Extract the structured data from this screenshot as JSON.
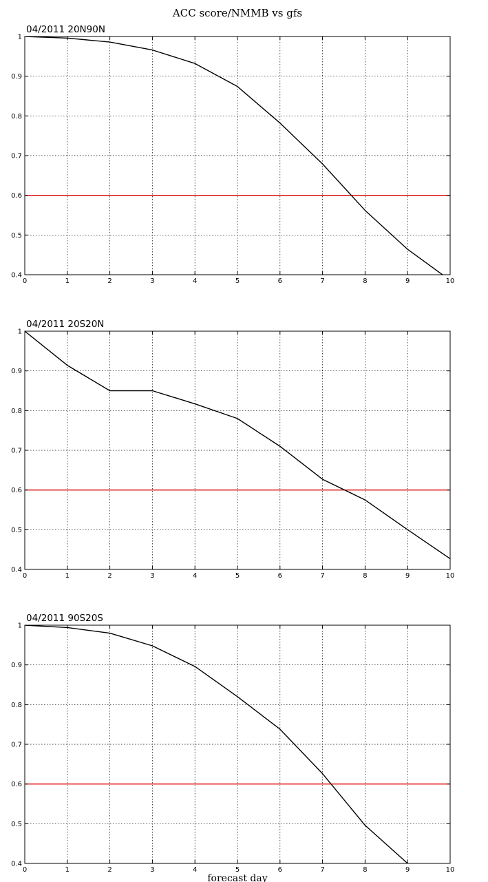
{
  "figure": {
    "title": "ACC score/NMMB vs gfs",
    "xlabel": "forecast day"
  },
  "chart_data": [
    {
      "type": "line",
      "title": "04/2011 20N90N",
      "x": [
        0,
        1,
        2,
        3,
        4,
        5,
        6,
        7,
        8,
        9,
        10
      ],
      "xlim": [
        0,
        10
      ],
      "ylim": [
        0.4,
        1.0
      ],
      "xticks": [
        0,
        1,
        2,
        3,
        4,
        5,
        6,
        7,
        8,
        9,
        10
      ],
      "yticks": [
        0.4,
        0.5,
        0.6,
        0.7,
        0.8,
        0.9,
        1.0
      ],
      "ytick_labels": [
        "0.4",
        "0.5",
        "0.6",
        "0.7",
        "0.8",
        "0.9",
        "1"
      ],
      "grid": true,
      "series": [
        {
          "values": [
            1.0,
            0.996,
            0.986,
            0.966,
            0.932,
            0.874,
            0.782,
            0.679,
            0.562,
            0.464,
            0.386
          ],
          "color": "#000000"
        }
      ],
      "reference_line": {
        "y": 0.6,
        "color": "#e00000"
      }
    },
    {
      "type": "line",
      "title": "04/2011 20S20N",
      "x": [
        0,
        1,
        2,
        3,
        4,
        5,
        6,
        7,
        8,
        9,
        10
      ],
      "xlim": [
        0,
        10
      ],
      "ylim": [
        0.4,
        1.0
      ],
      "xticks": [
        0,
        1,
        2,
        3,
        4,
        5,
        6,
        7,
        8,
        9,
        10
      ],
      "yticks": [
        0.4,
        0.5,
        0.6,
        0.7,
        0.8,
        0.9,
        1.0
      ],
      "ytick_labels": [
        "0.4",
        "0.5",
        "0.6",
        "0.7",
        "0.8",
        "0.9",
        "1"
      ],
      "grid": true,
      "series": [
        {
          "values": [
            1.0,
            0.914,
            0.85,
            0.85,
            0.817,
            0.78,
            0.71,
            0.627,
            0.575,
            0.5,
            0.427
          ],
          "color": "#000000"
        }
      ],
      "reference_line": {
        "y": 0.6,
        "color": "#e00000"
      }
    },
    {
      "type": "line",
      "title": "04/2011 90S20S",
      "x": [
        0,
        1,
        2,
        3,
        4,
        5,
        6,
        7,
        8,
        9,
        10
      ],
      "xlim": [
        0,
        10
      ],
      "ylim": [
        0.4,
        1.0
      ],
      "xticks": [
        0,
        1,
        2,
        3,
        4,
        5,
        6,
        7,
        8,
        9,
        10
      ],
      "yticks": [
        0.4,
        0.5,
        0.6,
        0.7,
        0.8,
        0.9,
        1.0
      ],
      "ytick_labels": [
        "0.4",
        "0.5",
        "0.6",
        "0.7",
        "0.8",
        "0.9",
        "1"
      ],
      "grid": true,
      "series": [
        {
          "values": [
            1.0,
            0.994,
            0.98,
            0.948,
            0.896,
            0.82,
            0.738,
            0.626,
            0.496,
            0.4,
            0.32
          ],
          "color": "#000000"
        }
      ],
      "reference_line": {
        "y": 0.6,
        "color": "#e00000"
      }
    }
  ]
}
